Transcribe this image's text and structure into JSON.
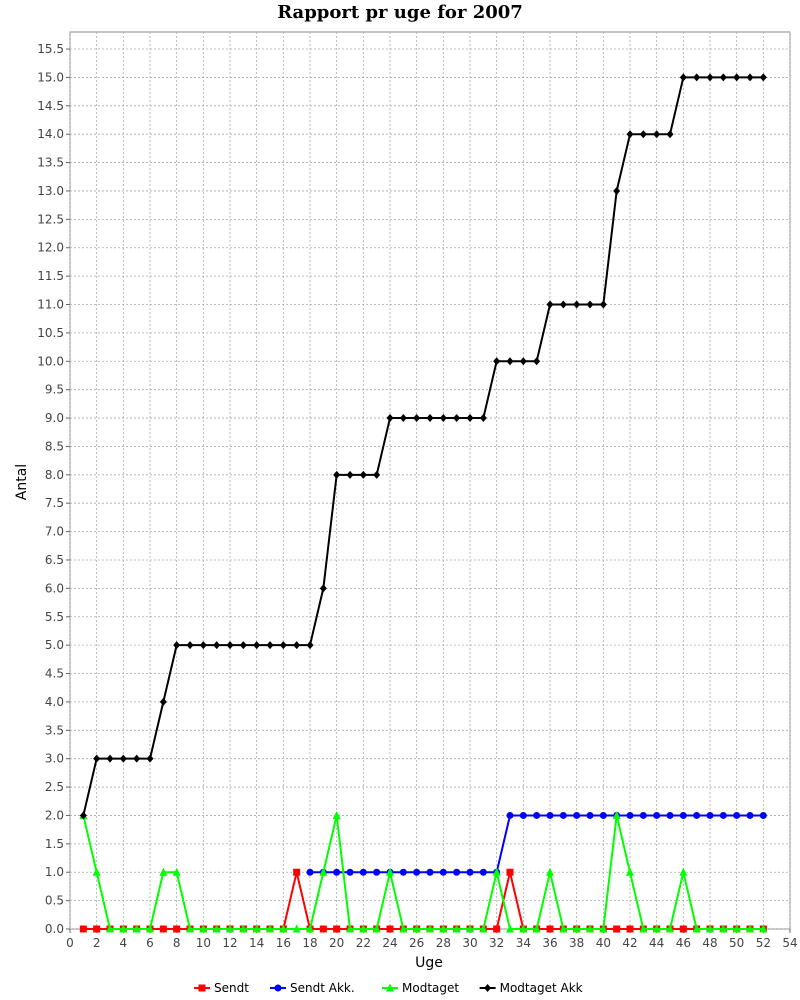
{
  "chart_data": {
    "type": "line",
    "title": "Rapport pr uge for 2007",
    "xlabel": "Uge",
    "ylabel": "Antal",
    "xlim": [
      0,
      54
    ],
    "ylim": [
      0,
      15.8
    ],
    "xticks": [
      0,
      2,
      4,
      6,
      8,
      10,
      12,
      14,
      16,
      18,
      20,
      22,
      24,
      26,
      28,
      30,
      32,
      34,
      36,
      38,
      40,
      42,
      44,
      46,
      48,
      50,
      52,
      54
    ],
    "yticks": [
      "0.0",
      "0.5",
      "1.0",
      "1.5",
      "2.0",
      "2.5",
      "3.0",
      "3.5",
      "4.0",
      "4.5",
      "5.0",
      "5.5",
      "6.0",
      "6.5",
      "7.0",
      "7.5",
      "8.0",
      "8.5",
      "9.0",
      "9.5",
      "10.0",
      "10.5",
      "11.0",
      "11.5",
      "12.0",
      "12.5",
      "13.0",
      "13.5",
      "14.0",
      "14.5",
      "15.0",
      "15.5"
    ],
    "grid": true,
    "legend_position": "bottom",
    "series": [
      {
        "name": "Sendt",
        "color": "#ff0000",
        "marker": "square",
        "x": [
          1,
          2,
          3,
          4,
          5,
          6,
          7,
          8,
          9,
          10,
          11,
          12,
          13,
          14,
          15,
          16,
          17,
          18,
          19,
          20,
          21,
          22,
          23,
          24,
          25,
          26,
          27,
          28,
          29,
          30,
          31,
          32,
          33,
          34,
          35,
          36,
          37,
          38,
          39,
          40,
          41,
          42,
          43,
          44,
          45,
          46,
          47,
          48,
          49,
          50,
          51,
          52
        ],
        "y": [
          0,
          0,
          0,
          0,
          0,
          0,
          0,
          0,
          0,
          0,
          0,
          0,
          0,
          0,
          0,
          0,
          1,
          0,
          0,
          0,
          0,
          0,
          0,
          0,
          0,
          0,
          0,
          0,
          0,
          0,
          0,
          0,
          1,
          0,
          0,
          0,
          0,
          0,
          0,
          0,
          0,
          0,
          0,
          0,
          0,
          0,
          0,
          0,
          0,
          0,
          0,
          0
        ]
      },
      {
        "name": "Sendt Akk.",
        "color": "#0000ff",
        "marker": "circle",
        "x": [
          18,
          19,
          20,
          21,
          22,
          23,
          24,
          25,
          26,
          27,
          28,
          29,
          30,
          31,
          32,
          33,
          34,
          35,
          36,
          37,
          38,
          39,
          40,
          41,
          42,
          43,
          44,
          45,
          46,
          47,
          48,
          49,
          50,
          51,
          52
        ],
        "y": [
          1,
          1,
          1,
          1,
          1,
          1,
          1,
          1,
          1,
          1,
          1,
          1,
          1,
          1,
          1,
          2,
          2,
          2,
          2,
          2,
          2,
          2,
          2,
          2,
          2,
          2,
          2,
          2,
          2,
          2,
          2,
          2,
          2,
          2,
          2
        ]
      },
      {
        "name": "Modtaget",
        "color": "#00ff00",
        "marker": "triangle",
        "x": [
          1,
          2,
          3,
          4,
          5,
          6,
          7,
          8,
          9,
          10,
          11,
          12,
          13,
          14,
          15,
          16,
          17,
          18,
          19,
          20,
          21,
          22,
          23,
          24,
          25,
          26,
          27,
          28,
          29,
          30,
          31,
          32,
          33,
          34,
          35,
          36,
          37,
          38,
          39,
          40,
          41,
          42,
          43,
          44,
          45,
          46,
          47,
          48,
          49,
          50,
          51,
          52
        ],
        "y": [
          2,
          1,
          0,
          0,
          0,
          0,
          1,
          1,
          0,
          0,
          0,
          0,
          0,
          0,
          0,
          0,
          0,
          0,
          1,
          2,
          0,
          0,
          0,
          1,
          0,
          0,
          0,
          0,
          0,
          0,
          0,
          1,
          0,
          0,
          0,
          1,
          0,
          0,
          0,
          0,
          2,
          1,
          0,
          0,
          0,
          1,
          0,
          0,
          0,
          0,
          0,
          0
        ]
      },
      {
        "name": "Modtaget Akk",
        "color": "#000000",
        "marker": "diamond",
        "x": [
          1,
          2,
          3,
          4,
          5,
          6,
          7,
          8,
          9,
          10,
          11,
          12,
          13,
          14,
          15,
          16,
          17,
          18,
          19,
          20,
          21,
          22,
          23,
          24,
          25,
          26,
          27,
          28,
          29,
          30,
          31,
          32,
          33,
          34,
          35,
          36,
          37,
          38,
          39,
          40,
          41,
          42,
          43,
          44,
          45,
          46,
          47,
          48,
          49,
          50,
          51,
          52
        ],
        "y": [
          2,
          3,
          3,
          3,
          3,
          3,
          4,
          5,
          5,
          5,
          5,
          5,
          5,
          5,
          5,
          5,
          5,
          5,
          6,
          8,
          8,
          8,
          8,
          9,
          9,
          9,
          9,
          9,
          9,
          9,
          9,
          10,
          10,
          10,
          10,
          11,
          11,
          11,
          11,
          11,
          13,
          14,
          14,
          14,
          14,
          15,
          15,
          15,
          15,
          15,
          15,
          15
        ]
      }
    ]
  }
}
